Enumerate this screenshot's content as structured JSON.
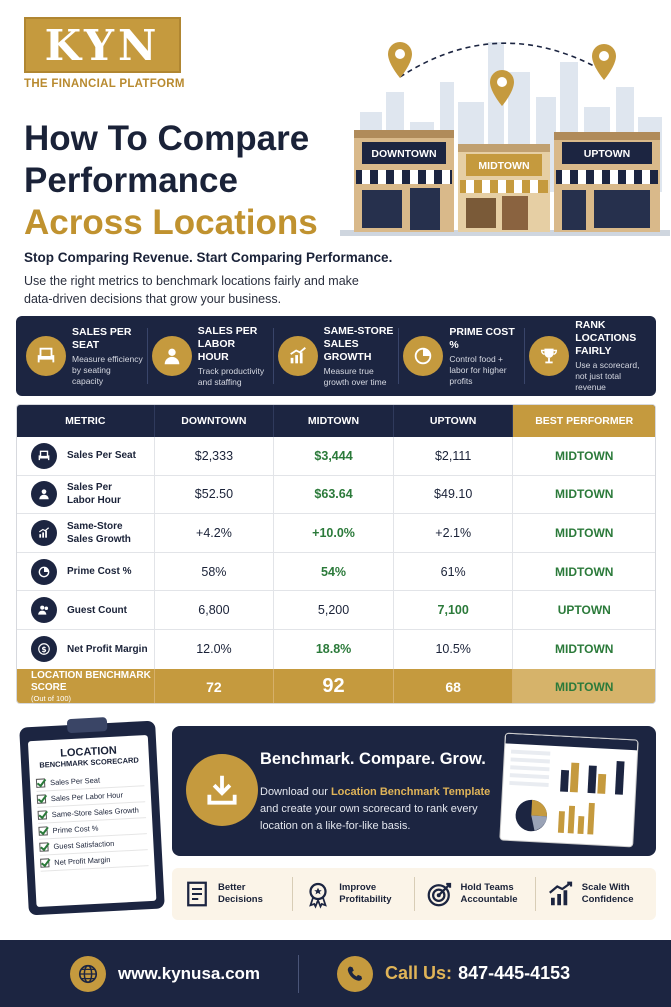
{
  "brand": {
    "logo": "KYN",
    "tagline": "THE FINANCIAL PLATFORM"
  },
  "hero": {
    "stores": [
      "DOWNTOWN",
      "MIDTOWN",
      "UPTOWN"
    ]
  },
  "headline": {
    "line1": "How To Compare",
    "line2": "Performance",
    "line3": "Across Locations"
  },
  "subhead": "Stop Comparing Revenue. Start Comparing Performance.",
  "description": "Use the right metrics to benchmark locations fairly and make data-driven decisions that grow your business.",
  "features": [
    {
      "icon": "chair-icon",
      "title": "SALES PER SEAT",
      "sub": "Measure efficiency by seating capacity"
    },
    {
      "icon": "person-icon",
      "title": "SALES PER LABOR HOUR",
      "sub": "Track productivity and staffing"
    },
    {
      "icon": "growth-chart-icon",
      "title": "SAME-STORE SALES GROWTH",
      "sub": "Measure true growth over time"
    },
    {
      "icon": "pie-chart-icon",
      "title": "PRIME COST %",
      "sub": "Control food + labor for higher profits"
    },
    {
      "icon": "trophy-icon",
      "title": "RANK LOCATIONS FAIRLY",
      "sub": "Use a scorecard, not just total revenue"
    }
  ],
  "table": {
    "headers": [
      "METRIC",
      "DOWNTOWN",
      "MIDTOWN",
      "UPTOWN",
      "BEST PERFORMER"
    ],
    "rows": [
      {
        "icon": "chair-icon",
        "metric": "Sales Per Seat",
        "downtown": "$2,333",
        "midtown": "$3,444",
        "uptown": "$2,111",
        "best": "MIDTOWN",
        "winner": "midtown"
      },
      {
        "icon": "person-icon",
        "metric": "Sales Per Labor Hour",
        "downtown": "$52.50",
        "midtown": "$63.64",
        "uptown": "$49.10",
        "best": "MIDTOWN",
        "winner": "midtown"
      },
      {
        "icon": "growth-chart-icon",
        "metric": "Same-Store Sales Growth",
        "downtown": "+4.2%",
        "midtown": "+10.0%",
        "uptown": "+2.1%",
        "best": "MIDTOWN",
        "winner": "midtown"
      },
      {
        "icon": "pie-chart-icon",
        "metric": "Prime Cost %",
        "downtown": "58%",
        "midtown": "54%",
        "uptown": "61%",
        "best": "MIDTOWN",
        "winner": "midtown"
      },
      {
        "icon": "guests-icon",
        "metric": "Guest Count",
        "downtown": "6,800",
        "midtown": "5,200",
        "uptown": "7,100",
        "best": "UPTOWN",
        "winner": "uptown"
      },
      {
        "icon": "dollar-icon",
        "metric": "Net Profit Margin",
        "downtown": "12.0%",
        "midtown": "18.8%",
        "uptown": "10.5%",
        "best": "MIDTOWN",
        "winner": "midtown"
      }
    ],
    "footer": {
      "label": "LOCATION BENCHMARK SCORE",
      "sub": "(Out of 100)",
      "downtown": "72",
      "midtown": "92",
      "uptown": "68",
      "best": "MIDTOWN"
    }
  },
  "scorecard": {
    "title": "LOCATION",
    "subtitle": "BENCHMARK SCORECARD",
    "items": [
      "Sales Per Seat",
      "Sales Per Labor Hour",
      "Same-Store Sales Growth",
      "Prime Cost %",
      "Guest Satisfaction",
      "Net Profit Margin"
    ]
  },
  "download": {
    "title": "Benchmark. Compare. Grow.",
    "text_before": "Download our ",
    "link": "Location Benchmark Template",
    "text_after": " and create your own scorecard to rank every location on a like-for-like basis."
  },
  "benefits": [
    {
      "icon": "checklist-icon",
      "label": "Better Decisions"
    },
    {
      "icon": "award-icon",
      "label": "Improve Profitability"
    },
    {
      "icon": "target-icon",
      "label": "Hold Teams Accountable"
    },
    {
      "icon": "bar-growth-icon",
      "label": "Scale With Confidence"
    }
  ],
  "footer": {
    "website": "www.kynusa.com",
    "call_label": "Call Us:",
    "phone": "847-445-4153"
  }
}
